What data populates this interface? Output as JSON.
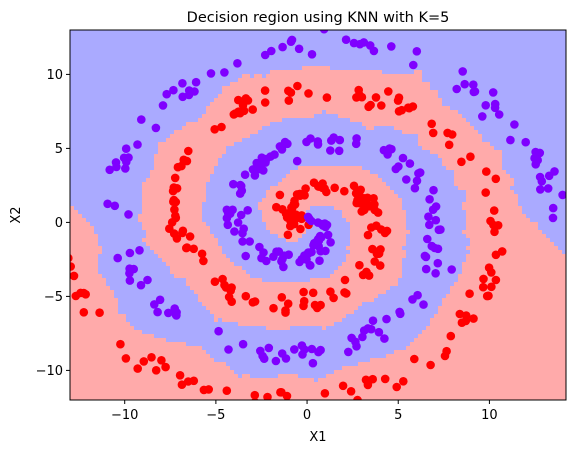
{
  "chart_data": {
    "type": "scatter",
    "title": "Decision region using KNN with K=5",
    "xlabel": "X1",
    "ylabel": "X2",
    "xlim": [
      -13,
      14.2
    ],
    "ylim": [
      -12,
      13
    ],
    "xticks": [
      -10,
      -5,
      0,
      5,
      10
    ],
    "yticks": [
      -10,
      -5,
      0,
      5,
      10
    ],
    "grid": false,
    "legend": "none",
    "colors": {
      "class_red_point": "#ff0000",
      "class_purple_point": "#7f00ff",
      "region_red": "#ffaaaa",
      "region_blue": "#aaaaff"
    },
    "series": [
      {
        "class": "red",
        "spiral": {
          "r_start": 0.6,
          "r_end": 13.6,
          "angle_start_deg": 180,
          "angle_end_deg": -540,
          "n_points": 250,
          "noise": 0.35
        }
      },
      {
        "class": "purple",
        "spiral": {
          "r_start": 0.6,
          "r_end": 13.6,
          "angle_start_deg": 0,
          "angle_end_deg": -720,
          "n_points": 250,
          "noise": 0.35
        }
      }
    ]
  }
}
